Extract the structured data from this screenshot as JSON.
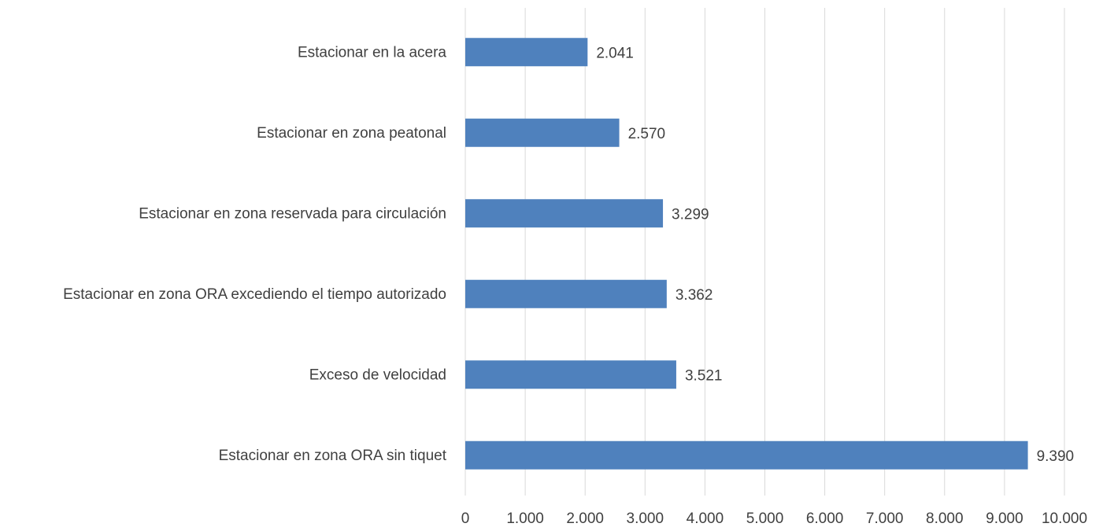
{
  "chart_data": {
    "type": "barh",
    "categories": [
      "Estacionar en la acera",
      "Estacionar en zona peatonal",
      "Estacionar en zona reservada para circulación",
      "Estacionar en zona ORA excediendo el tiempo autorizado",
      "Exceso de velocidad",
      "Estacionar en zona ORA sin tiquet"
    ],
    "values": [
      2041,
      2570,
      3299,
      3362,
      3521,
      9390
    ],
    "value_labels": [
      "2.041",
      "2.570",
      "3.299",
      "3.362",
      "3.521",
      "9.390"
    ],
    "color": "#4f81bd",
    "xlim": [
      0,
      10000
    ],
    "xticks": [
      0,
      {
        "value": 1000,
        "label": "1.000"
      },
      {
        "value": 2000,
        "label": "2.000"
      },
      {
        "value": 3000,
        "label": "3.000"
      },
      {
        "value": 4000,
        "label": "4.000"
      },
      {
        "value": 5000,
        "label": "5.000"
      },
      {
        "value": 6000,
        "label": "6.000"
      },
      {
        "value": 7000,
        "label": "7.000"
      },
      {
        "value": 8000,
        "label": "8.000"
      },
      {
        "value": 9000,
        "label": "9.000"
      },
      {
        "value": 10000,
        "label": "10.000"
      }
    ],
    "grid": true
  }
}
